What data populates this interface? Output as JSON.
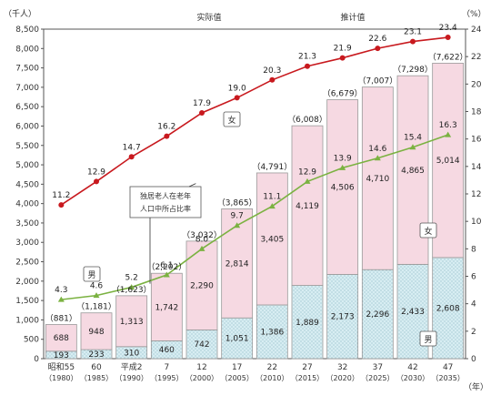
{
  "chart_data": {
    "type": "bar",
    "stacked": true,
    "header_labels": {
      "actual": "实际值",
      "projected": "推计值"
    },
    "left_axis": {
      "unit": "（千人）",
      "ylim": [
        0,
        8500
      ],
      "ticks": [
        0,
        500,
        1000,
        1500,
        2000,
        2500,
        3000,
        3500,
        4000,
        4500,
        5000,
        5500,
        6000,
        6500,
        7000,
        7500,
        8000,
        8500
      ]
    },
    "right_axis": {
      "unit": "（%）",
      "ylim": [
        0,
        24
      ],
      "ticks": [
        0,
        2,
        4,
        6,
        8,
        10,
        12,
        14,
        16,
        18,
        20,
        22,
        24
      ]
    },
    "x_unit": "（年）",
    "categories": [
      {
        "label": "昭和55",
        "year": "（1980）"
      },
      {
        "label": "60",
        "year": "（1985）"
      },
      {
        "label": "平成2",
        "year": "（1990）"
      },
      {
        "label": "7",
        "year": "（1995）"
      },
      {
        "label": "12",
        "year": "（2000）"
      },
      {
        "label": "17",
        "year": "（2005）"
      },
      {
        "label": "22",
        "year": "（2010）"
      },
      {
        "label": "27",
        "year": "（2015）"
      },
      {
        "label": "32",
        "year": "（2020）"
      },
      {
        "label": "37",
        "year": "（2025）"
      },
      {
        "label": "42",
        "year": "（2030）"
      },
      {
        "label": "47",
        "year": "（2035）"
      }
    ],
    "bars": {
      "male": [
        193,
        233,
        310,
        460,
        742,
        1051,
        1386,
        1889,
        2173,
        2296,
        2433,
        2608
      ],
      "female": [
        688,
        948,
        1313,
        1742,
        2290,
        2814,
        3405,
        4119,
        4506,
        4710,
        4865,
        5014
      ],
      "total_labels": [
        "（881）",
        "（1,181）",
        "（1,623）",
        "（2,202）",
        "（3,032）",
        "（3,865）",
        "（4,791）",
        "（6,008）",
        "（6,679）",
        "（7,007）",
        "（7,298）",
        "（7,622）"
      ],
      "male_labels": [
        "193",
        "233",
        "310",
        "460",
        "742",
        "1,051",
        "1,386",
        "1,889",
        "2,173",
        "2,296",
        "2,433",
        "2,608"
      ],
      "female_labels": [
        "688",
        "948",
        "1,313",
        "1,742",
        "2,290",
        "2,814",
        "3,405",
        "4,119",
        "4,506",
        "4,710",
        "4,865",
        "5,014"
      ],
      "colors": {
        "female": "#f6d9e2",
        "male": "#d7edf2",
        "edge": "#9a9a9a"
      }
    },
    "series": [
      {
        "name": "女",
        "values": [
          11.2,
          12.9,
          14.7,
          16.2,
          17.9,
          19.0,
          20.3,
          21.3,
          21.9,
          22.6,
          23.1,
          23.4
        ],
        "color": "#c8191e"
      },
      {
        "name": "男",
        "values": [
          4.3,
          4.6,
          5.2,
          6.1,
          8.0,
          9.7,
          11.1,
          12.9,
          13.9,
          14.6,
          15.4,
          16.3
        ],
        "color": "#7bb241"
      }
    ],
    "annotations": {
      "female_line": "女",
      "male_line": "男",
      "female_bar": "女",
      "male_bar": "男",
      "callout_line1": "独居老人在老年",
      "callout_line2": "人口中所占比率"
    }
  }
}
